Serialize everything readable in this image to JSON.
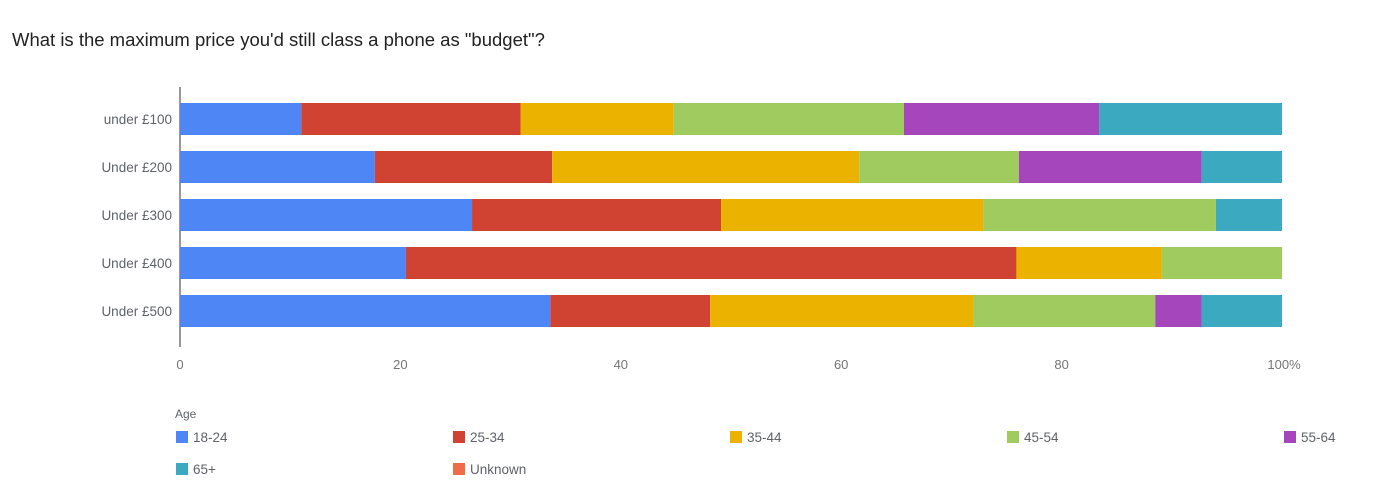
{
  "chart_data": {
    "type": "bar",
    "orientation": "horizontal",
    "stacked": "percent",
    "title": "What is the maximum price you'd still class a phone as \"budget\"?",
    "categories": [
      "under £100",
      "Under £200",
      "Under £300",
      "Under £400",
      "Under £500"
    ],
    "x_ticks": [
      "0",
      "20",
      "40",
      "60",
      "80",
      "100%"
    ],
    "xlim": [
      0,
      100
    ],
    "grid": false,
    "legend": {
      "title": "Age",
      "position": "bottom"
    },
    "series": [
      {
        "name": "18-24",
        "color": "#4e86f5",
        "values": [
          11,
          17.7,
          26.5,
          20.5,
          33.6
        ]
      },
      {
        "name": "25-34",
        "color": "#d04333",
        "values": [
          19.9,
          16.1,
          22.6,
          55.4,
          14.5
        ]
      },
      {
        "name": "35-44",
        "color": "#ebb200",
        "values": [
          13.9,
          27.9,
          23.8,
          13.2,
          23.9
        ]
      },
      {
        "name": "45-54",
        "color": "#9fcb5f",
        "values": [
          20.9,
          14.5,
          21.1,
          10.9,
          16.5
        ]
      },
      {
        "name": "55-64",
        "color": "#a546bc",
        "values": [
          17.7,
          16.6,
          0,
          0,
          4.2
        ]
      },
      {
        "name": "65+",
        "color": "#3baac1",
        "values": [
          16.6,
          7.3,
          6.0,
          0,
          7.3
        ]
      },
      {
        "name": "Unknown",
        "color": "#ee6c4a",
        "values": [
          0,
          0,
          0,
          0,
          0
        ]
      }
    ]
  }
}
